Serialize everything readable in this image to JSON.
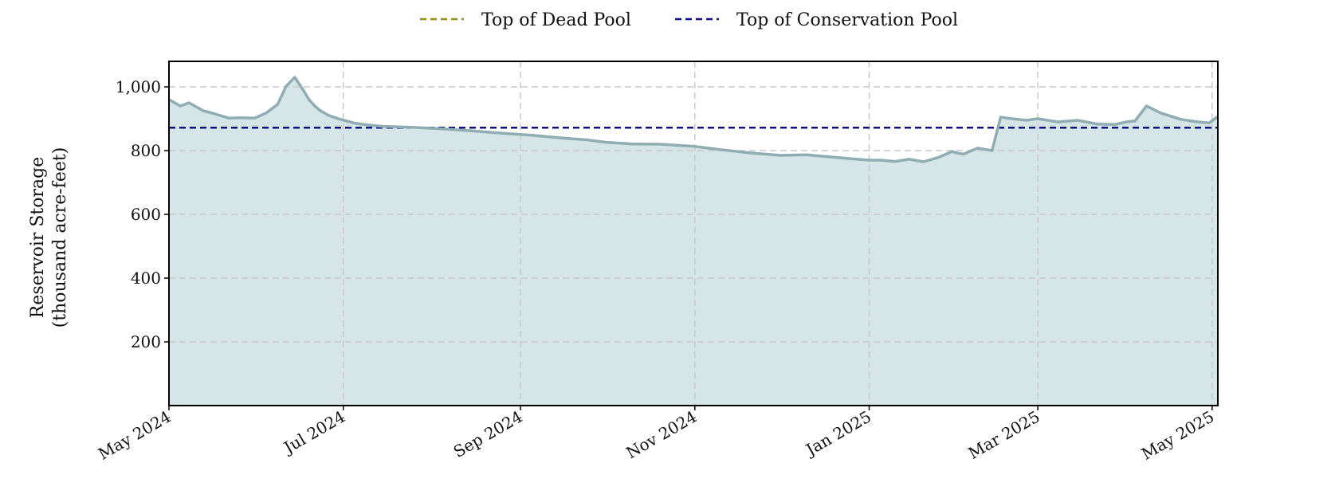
{
  "chart_data": {
    "type": "area",
    "ylabel": [
      "Reservoir Storage",
      "(thousand acre-feet)"
    ],
    "xlabel": "",
    "title": "",
    "ylim": [
      0,
      1080
    ],
    "xlim": [
      "2024-05-01",
      "2025-05-03"
    ],
    "yticks": [
      {
        "value": 200,
        "label": "200"
      },
      {
        "value": 400,
        "label": "400"
      },
      {
        "value": 600,
        "label": "600"
      },
      {
        "value": 800,
        "label": "800"
      },
      {
        "value": 1000,
        "label": "1,000"
      }
    ],
    "xticks": [
      {
        "date": "2024-05-01",
        "label": "May 2024"
      },
      {
        "date": "2024-07-01",
        "label": "Jul 2024"
      },
      {
        "date": "2024-09-01",
        "label": "Sep 2024"
      },
      {
        "date": "2024-11-01",
        "label": "Nov 2024"
      },
      {
        "date": "2025-01-01",
        "label": "Jan 2025"
      },
      {
        "date": "2025-03-01",
        "label": "Mar 2025"
      },
      {
        "date": "2025-05-01",
        "label": "May 2025"
      }
    ],
    "grid": true,
    "legend_position": "top-center",
    "fill_color": "#d6e6e8",
    "line_color": "#8fadb2",
    "reference_lines": [
      {
        "name": "Top of Dead Pool",
        "value": null,
        "color": "#9a8e12"
      },
      {
        "name": "Top of Conservation Pool",
        "value": 872,
        "color": "#0d1280"
      }
    ],
    "series": [
      {
        "x": [
          "2024-05-01",
          "2024-05-05",
          "2024-05-08",
          "2024-05-11",
          "2024-05-13",
          "2024-05-16",
          "2024-05-19",
          "2024-05-22",
          "2024-05-26",
          "2024-05-31",
          "2024-06-04",
          "2024-06-08",
          "2024-06-11",
          "2024-06-14",
          "2024-06-17",
          "2024-06-19",
          "2024-06-21",
          "2024-06-23",
          "2024-06-26",
          "2024-06-30",
          "2024-07-05",
          "2024-07-10",
          "2024-07-15",
          "2024-07-25",
          "2024-08-05",
          "2024-08-15",
          "2024-08-25",
          "2024-09-05",
          "2024-09-15",
          "2024-09-25",
          "2024-10-01",
          "2024-10-10",
          "2024-10-20",
          "2024-11-01",
          "2024-11-10",
          "2024-11-20",
          "2024-12-01",
          "2024-12-10",
          "2024-12-20",
          "2024-12-25",
          "2025-01-01",
          "2025-01-05",
          "2025-01-10",
          "2025-01-15",
          "2025-01-20",
          "2025-01-25",
          "2025-01-30",
          "2025-02-01",
          "2025-02-03",
          "2025-02-08",
          "2025-02-13",
          "2025-02-16",
          "2025-02-20",
          "2025-02-25",
          "2025-03-01",
          "2025-03-08",
          "2025-03-15",
          "2025-03-22",
          "2025-03-28",
          "2025-04-01",
          "2025-04-04",
          "2025-04-08",
          "2025-04-13",
          "2025-04-20",
          "2025-04-26",
          "2025-04-30",
          "2025-05-03"
        ],
        "y": [
          960,
          940,
          950,
          935,
          925,
          918,
          910,
          902,
          903,
          902,
          918,
          945,
          1002,
          1030,
          990,
          960,
          940,
          925,
          910,
          898,
          886,
          880,
          876,
          873,
          868,
          862,
          855,
          848,
          840,
          833,
          826,
          821,
          820,
          813,
          803,
          793,
          785,
          787,
          779,
          775,
          770,
          770,
          766,
          773,
          765,
          778,
          797,
          792,
          789,
          808,
          800,
          905,
          900,
          895,
          900,
          890,
          895,
          883,
          882,
          890,
          893,
          940,
          918,
          898,
          890,
          887,
          907
        ]
      }
    ]
  }
}
